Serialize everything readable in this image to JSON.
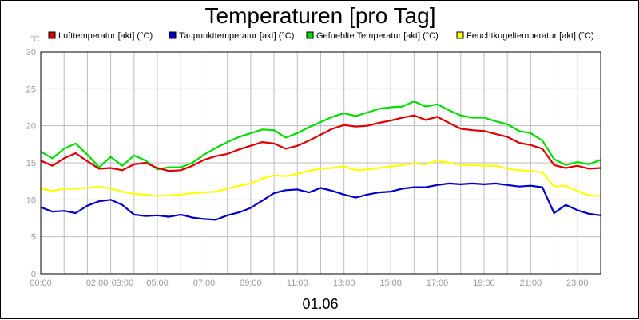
{
  "chart_data": {
    "type": "line",
    "title": "Temperaturen [pro Tag]",
    "ylabel": "°C",
    "xlabel": "01.06",
    "ylim": [
      0,
      30
    ],
    "yticks": [
      "0",
      "5",
      "10",
      "15",
      "20",
      "25",
      "30"
    ],
    "xlim": [
      0,
      24
    ],
    "xticks": [
      "00:00",
      "02:00",
      "03:00",
      "05:00",
      "07:00",
      "09:00",
      "11:00",
      "13:00",
      "15:00",
      "17:00",
      "19:00",
      "21:00",
      "23:00"
    ],
    "xtick_hours": [
      0,
      2,
      3,
      5,
      7,
      9,
      11,
      13,
      15,
      17,
      19,
      21,
      23
    ],
    "grid": true,
    "legend_position": "top",
    "series": [
      {
        "name": "Lufttemperatur [akt] (°C)",
        "color": "#e00000",
        "x": [
          0,
          0.5,
          1,
          1.5,
          2,
          2.5,
          3,
          3.5,
          4,
          4.5,
          5,
          5.5,
          6,
          6.5,
          7,
          7.5,
          8,
          8.5,
          9,
          9.5,
          10,
          10.5,
          11,
          11.5,
          12,
          12.5,
          13,
          13.5,
          14,
          14.5,
          15,
          15.5,
          16,
          16.5,
          17,
          17.5,
          18,
          18.5,
          19,
          19.5,
          20,
          20.5,
          21,
          21.5,
          22,
          22.5,
          23,
          23.5,
          24
        ],
        "values": [
          15.3,
          14.6,
          15.6,
          16.3,
          15.2,
          14.2,
          14.3,
          14.0,
          14.8,
          15.0,
          14.3,
          13.9,
          14.0,
          14.6,
          15.4,
          15.9,
          16.2,
          16.8,
          17.3,
          17.8,
          17.6,
          16.9,
          17.3,
          18.0,
          18.8,
          19.6,
          20.1,
          19.9,
          20.0,
          20.4,
          20.7,
          21.1,
          21.4,
          20.8,
          21.2,
          20.4,
          19.6,
          19.4,
          19.3,
          18.9,
          18.5,
          17.7,
          17.4,
          16.9,
          14.7,
          14.3,
          14.6,
          14.2,
          14.3
        ]
      },
      {
        "name": "Taupunkttemperatur [akt] (°C)",
        "color": "#0000cc",
        "x": [
          0,
          0.5,
          1,
          1.5,
          2,
          2.5,
          3,
          3.5,
          4,
          4.5,
          5,
          5.5,
          6,
          6.5,
          7,
          7.5,
          8,
          8.5,
          9,
          9.5,
          10,
          10.5,
          11,
          11.5,
          12,
          12.5,
          13,
          13.5,
          14,
          14.5,
          15,
          15.5,
          16,
          16.5,
          17,
          17.5,
          18,
          18.5,
          19,
          19.5,
          20,
          20.5,
          21,
          21.5,
          22,
          22.5,
          23,
          23.5,
          24
        ],
        "values": [
          9.0,
          8.4,
          8.5,
          8.2,
          9.2,
          9.8,
          10.0,
          9.3,
          8.0,
          7.8,
          7.9,
          7.7,
          8.0,
          7.6,
          7.4,
          7.3,
          7.9,
          8.3,
          8.9,
          9.9,
          10.9,
          11.3,
          11.4,
          11.0,
          11.6,
          11.2,
          10.7,
          10.3,
          10.7,
          11.0,
          11.1,
          11.5,
          11.7,
          11.7,
          12.0,
          12.2,
          12.1,
          12.2,
          12.1,
          12.2,
          12.0,
          11.8,
          11.9,
          11.7,
          8.2,
          9.3,
          8.6,
          8.1,
          7.9
        ]
      },
      {
        "name": "Gefuehlte Temperatur [akt] (°C)",
        "color": "#00dd00",
        "x": [
          0,
          0.5,
          1,
          1.5,
          2,
          2.5,
          3,
          3.5,
          4,
          4.5,
          5,
          5.5,
          6,
          6.5,
          7,
          7.5,
          8,
          8.5,
          9,
          9.5,
          10,
          10.5,
          11,
          11.5,
          12,
          12.5,
          13,
          13.5,
          14,
          14.5,
          15,
          15.5,
          16,
          16.5,
          17,
          17.5,
          18,
          18.5,
          19,
          19.5,
          20,
          20.5,
          21,
          21.5,
          22,
          22.5,
          23,
          23.5,
          24
        ],
        "values": [
          16.5,
          15.6,
          16.9,
          17.6,
          16.1,
          14.4,
          15.8,
          14.6,
          16.0,
          15.3,
          14.1,
          14.4,
          14.4,
          15.0,
          16.1,
          17.0,
          17.8,
          18.5,
          19.0,
          19.5,
          19.4,
          18.4,
          19.0,
          19.8,
          20.5,
          21.2,
          21.7,
          21.3,
          21.8,
          22.3,
          22.5,
          22.6,
          23.3,
          22.6,
          22.9,
          22.1,
          21.4,
          21.1,
          21.1,
          20.6,
          20.2,
          19.3,
          19.0,
          18.0,
          15.5,
          14.7,
          15.1,
          14.8,
          15.4
        ]
      },
      {
        "name": "Feuchtkugeltemperatur [akt] (°C)",
        "color": "#ffff00",
        "x": [
          0,
          0.5,
          1,
          1.5,
          2,
          2.5,
          3,
          3.5,
          4,
          4.5,
          5,
          5.5,
          6,
          6.5,
          7,
          7.5,
          8,
          8.5,
          9,
          9.5,
          10,
          10.5,
          11,
          11.5,
          12,
          12.5,
          13,
          13.5,
          14,
          14.5,
          15,
          15.5,
          16,
          16.5,
          17,
          17.5,
          18,
          18.5,
          19,
          19.5,
          20,
          20.5,
          21,
          21.5,
          22,
          22.5,
          23,
          23.5,
          24
        ],
        "values": [
          11.5,
          11.2,
          11.5,
          11.5,
          11.6,
          11.8,
          11.5,
          11.1,
          10.8,
          10.7,
          10.5,
          10.6,
          10.7,
          10.9,
          11.0,
          11.1,
          11.5,
          11.9,
          12.2,
          12.9,
          13.3,
          13.2,
          13.5,
          13.9,
          14.2,
          14.3,
          14.5,
          14.0,
          14.1,
          14.3,
          14.5,
          14.7,
          14.9,
          14.8,
          15.3,
          15.0,
          14.7,
          14.7,
          14.6,
          14.6,
          14.2,
          14.0,
          13.9,
          13.7,
          11.8,
          11.9,
          11.2,
          10.6,
          10.5
        ]
      }
    ]
  }
}
